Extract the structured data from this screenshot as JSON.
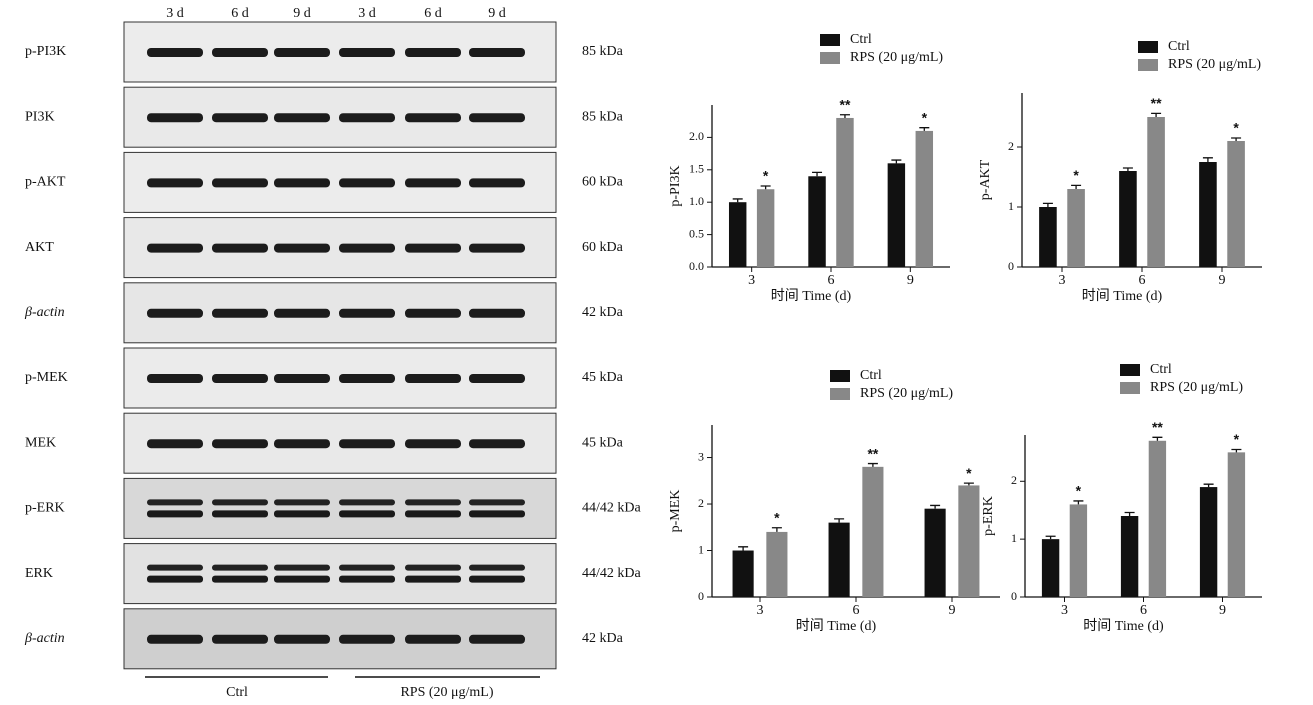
{
  "blot": {
    "lanes": [
      "3 d",
      "6 d",
      "9 d",
      "3 d",
      "6 d",
      "9 d"
    ],
    "rows": [
      {
        "label": "p-PI3K",
        "size": "85 kDa"
      },
      {
        "label": "PI3K",
        "size": "85 kDa"
      },
      {
        "label": "p-AKT",
        "size": "60 kDa"
      },
      {
        "label": "AKT",
        "size": "60 kDa"
      },
      {
        "label": "β-actin",
        "size": "42 kDa"
      },
      {
        "label": "p-MEK",
        "size": "45 kDa"
      },
      {
        "label": "MEK",
        "size": "45 kDa"
      },
      {
        "label": "p-ERK",
        "size": "44/42 kDa"
      },
      {
        "label": "ERK",
        "size": "44/42 kDa"
      },
      {
        "label": "β-actin",
        "size": "42 kDa"
      }
    ],
    "groups": [
      "Ctrl",
      "RPS (20 μg/mL)"
    ]
  },
  "chart_data": [
    {
      "type": "bar",
      "y_label": "p-PI3K",
      "x_label": "时间 Time (d)",
      "categories": [
        "3",
        "6",
        "9"
      ],
      "series": [
        {
          "name": "Ctrl",
          "color": "#111111",
          "values": [
            1.0,
            1.4,
            1.6
          ],
          "errors": [
            0.05,
            0.06,
            0.05
          ]
        },
        {
          "name": "RPS (20 μg/mL)",
          "color": "#888888",
          "values": [
            1.2,
            2.3,
            2.1
          ],
          "errors": [
            0.05,
            0.05,
            0.05
          ],
          "significance": [
            "*",
            "**",
            "*"
          ]
        }
      ],
      "ylim": [
        0,
        2.5
      ],
      "yticks": [
        {
          "value": 0,
          "label": "0.0"
        },
        0.5,
        {
          "value": 1,
          "label": "1.0"
        },
        1.5,
        {
          "value": 2,
          "label": "2.0"
        }
      ],
      "legend": "top"
    },
    {
      "type": "bar",
      "y_label": "p-AKT",
      "x_label": "时间 Time (d)",
      "categories": [
        "3",
        "6",
        "9"
      ],
      "series": [
        {
          "name": "Ctrl",
          "color": "#111111",
          "values": [
            1.0,
            1.6,
            1.75
          ],
          "errors": [
            0.06,
            0.05,
            0.07
          ]
        },
        {
          "name": "RPS (20 μg/mL)",
          "color": "#888888",
          "values": [
            1.3,
            2.5,
            2.1
          ],
          "errors": [
            0.06,
            0.06,
            0.05
          ],
          "significance": [
            "*",
            "**",
            "*"
          ]
        }
      ],
      "ylim": [
        0,
        2.9
      ],
      "yticks": [
        0,
        1,
        2
      ],
      "legend": "top"
    },
    {
      "type": "bar",
      "y_label": "p-MEK",
      "x_label": "时间 Time (d)",
      "categories": [
        "3",
        "6",
        "9"
      ],
      "series": [
        {
          "name": "Ctrl",
          "color": "#111111",
          "values": [
            1.0,
            1.6,
            1.9
          ],
          "errors": [
            0.08,
            0.08,
            0.07
          ]
        },
        {
          "name": "RPS (20 μg/mL)",
          "color": "#888888",
          "values": [
            1.4,
            2.8,
            2.4
          ],
          "errors": [
            0.09,
            0.07,
            0.05
          ],
          "significance": [
            "*",
            "**",
            "*"
          ]
        }
      ],
      "ylim": [
        0,
        3.7
      ],
      "yticks": [
        0,
        1,
        2,
        3
      ],
      "legend": "top"
    },
    {
      "type": "bar",
      "y_label": "p-ERK",
      "x_label": "时间 Time (d)",
      "categories": [
        "3",
        "6",
        "9"
      ],
      "series": [
        {
          "name": "Ctrl",
          "color": "#111111",
          "values": [
            1.0,
            1.4,
            1.9
          ],
          "errors": [
            0.05,
            0.06,
            0.05
          ]
        },
        {
          "name": "RPS (20 μg/mL)",
          "color": "#888888",
          "values": [
            1.6,
            2.7,
            2.5
          ],
          "errors": [
            0.06,
            0.06,
            0.05
          ],
          "significance": [
            "*",
            "**",
            "*"
          ]
        }
      ],
      "ylim": [
        0,
        2.8
      ],
      "yticks": [
        0,
        1,
        2
      ],
      "legend": "top"
    }
  ]
}
